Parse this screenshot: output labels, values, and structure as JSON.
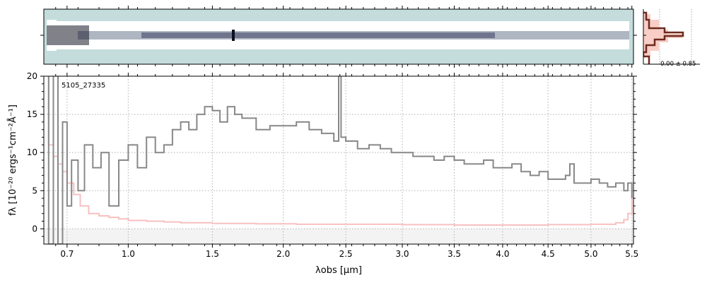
{
  "chart_data": {
    "type": "line",
    "title": "",
    "object_label": "5105_27335",
    "xlabel": "λobs [μm]",
    "ylabel": "fλ [10⁻²⁰ ergs⁻¹cm⁻²Å⁻¹]",
    "x_scale": "sqrt-like (nonlinear wavelength axis)",
    "xlim": [
      0.6,
      5.52
    ],
    "ylim": [
      -2,
      20
    ],
    "x_ticks": [
      "0.7",
      "1.0",
      "1.5",
      "2.0",
      "2.5",
      "3.0",
      "3.5",
      "4.0",
      "4.5",
      "5.0",
      "5.5"
    ],
    "y_ticks": [
      "0",
      "5",
      "10",
      "15",
      "20"
    ],
    "grid": true,
    "noise_annotation": "-0.00 ± 0.85",
    "colors": {
      "flux": "#888888",
      "error": "#f8c0c0",
      "thumb_bg": "#c5dcdc",
      "profile": "#6e2a1e",
      "profile_fill": "#f7c9c0"
    },
    "series": [
      {
        "role": "flux",
        "x": [
          0.6,
          0.62,
          0.64,
          0.66,
          0.68,
          0.7,
          0.72,
          0.75,
          0.78,
          0.82,
          0.86,
          0.9,
          0.95,
          1.0,
          1.05,
          1.1,
          1.15,
          1.2,
          1.25,
          1.3,
          1.35,
          1.4,
          1.45,
          1.5,
          1.55,
          1.6,
          1.65,
          1.7,
          1.8,
          1.9,
          2.0,
          2.1,
          2.2,
          2.3,
          2.4,
          2.44,
          2.46,
          2.5,
          2.6,
          2.7,
          2.8,
          2.9,
          3.0,
          3.1,
          3.2,
          3.3,
          3.4,
          3.5,
          3.6,
          3.7,
          3.8,
          3.9,
          4.0,
          4.1,
          4.2,
          4.3,
          4.4,
          4.5,
          4.6,
          4.7,
          4.75,
          4.8,
          4.9,
          5.0,
          5.1,
          5.2,
          5.3,
          5.4,
          5.45,
          5.5
        ],
        "y": [
          30,
          -2,
          25,
          -2,
          14,
          3,
          9,
          5,
          11,
          8,
          10,
          3,
          9,
          11,
          8,
          12,
          10,
          11,
          13,
          14,
          13,
          15,
          16,
          15.5,
          14,
          16,
          15,
          14.5,
          13,
          13.5,
          13.5,
          14,
          13,
          12.5,
          11.5,
          23,
          12,
          11.5,
          10.5,
          11,
          10.5,
          10,
          10,
          9.5,
          9.5,
          9,
          9.5,
          9,
          8.5,
          8.5,
          9,
          8,
          8,
          8.5,
          7.5,
          7,
          7.5,
          6.5,
          6.5,
          7,
          8.5,
          6,
          6,
          6.5,
          6,
          5.5,
          6,
          5,
          6,
          4
        ]
      },
      {
        "role": "error",
        "x": [
          0.6,
          0.62,
          0.64,
          0.66,
          0.68,
          0.7,
          0.73,
          0.76,
          0.8,
          0.85,
          0.9,
          0.95,
          1.0,
          1.1,
          1.2,
          1.3,
          1.5,
          1.8,
          2.1,
          2.5,
          3.0,
          3.5,
          4.0,
          4.5,
          5.0,
          5.3,
          5.4,
          5.45,
          5.5
        ],
        "y": [
          30,
          11,
          9.5,
          8.5,
          7.5,
          6,
          4.5,
          3,
          2,
          1.7,
          1.5,
          1.3,
          1.1,
          1.0,
          0.9,
          0.8,
          0.7,
          0.65,
          0.6,
          0.6,
          0.55,
          0.5,
          0.5,
          0.55,
          0.6,
          0.8,
          1.2,
          2,
          4
        ]
      }
    ]
  }
}
